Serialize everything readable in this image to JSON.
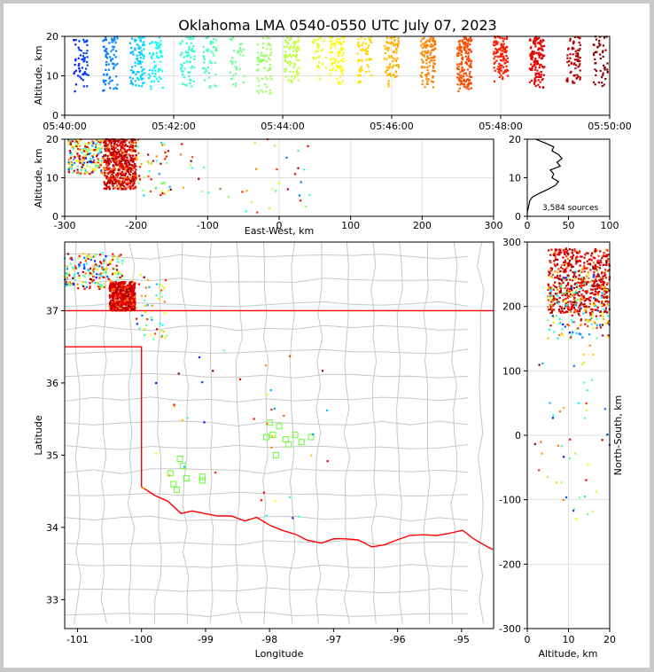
{
  "title": "Oklahoma LMA 0540-0550 UTC July 07, 2023",
  "colors": {
    "state_border": "#ff0000",
    "county_lines": "#c8c8c8",
    "grid": "#e0e0e0",
    "frame_bg": "#c8c8c8"
  },
  "chart_data": [
    {
      "id": "time-altitude",
      "type": "scatter",
      "ylabel": "Altitude, km",
      "xlim": [
        "05:40:00",
        "05:50:00"
      ],
      "ylim": [
        0,
        20
      ],
      "xticks": [
        "05:40:00",
        "05:42:00",
        "05:44:00",
        "05:46:00",
        "05:48:00",
        "05:50:00"
      ],
      "yticks": [
        0,
        10,
        20
      ],
      "color_by": "time",
      "color_ramp": [
        "#0000ff",
        "#00ffff",
        "#80ff80",
        "#ffff00",
        "#ff8000",
        "#ff0000",
        "#800000"
      ],
      "clusters": [
        {
          "t": "05:40:18",
          "alt": [
            6,
            20
          ],
          "n": 60
        },
        {
          "t": "05:40:50",
          "alt": [
            6,
            20
          ],
          "n": 70
        },
        {
          "t": "05:41:20",
          "alt": [
            7,
            20
          ],
          "n": 90
        },
        {
          "t": "05:41:40",
          "alt": [
            6,
            20
          ],
          "n": 60
        },
        {
          "t": "05:42:15",
          "alt": [
            7,
            20
          ],
          "n": 60
        },
        {
          "t": "05:42:40",
          "alt": [
            7,
            20
          ],
          "n": 45
        },
        {
          "t": "05:43:10",
          "alt": [
            7,
            20
          ],
          "n": 35
        },
        {
          "t": "05:43:40",
          "alt": [
            5,
            20
          ],
          "n": 60
        },
        {
          "t": "05:44:10",
          "alt": [
            8,
            20
          ],
          "n": 90
        },
        {
          "t": "05:44:40",
          "alt": [
            9,
            20
          ],
          "n": 30
        },
        {
          "t": "05:45:00",
          "alt": [
            8,
            20
          ],
          "n": 75
        },
        {
          "t": "05:45:30",
          "alt": [
            8,
            20
          ],
          "n": 60
        },
        {
          "t": "05:46:00",
          "alt": [
            7,
            20
          ],
          "n": 80
        },
        {
          "t": "05:46:40",
          "alt": [
            7,
            20
          ],
          "n": 110
        },
        {
          "t": "05:47:20",
          "alt": [
            6,
            20
          ],
          "n": 160
        },
        {
          "t": "05:48:00",
          "alt": [
            8,
            20
          ],
          "n": 110
        },
        {
          "t": "05:48:40",
          "alt": [
            7,
            20
          ],
          "n": 130
        },
        {
          "t": "05:49:20",
          "alt": [
            8,
            20
          ],
          "n": 70
        },
        {
          "t": "05:49:50",
          "alt": [
            7,
            20
          ],
          "n": 50
        }
      ]
    },
    {
      "id": "ew-altitude",
      "type": "scatter",
      "ylabel": "Altitude, km",
      "xlabel": "East-West, km",
      "xlim": [
        -300,
        300
      ],
      "ylim": [
        0,
        20
      ],
      "xticks": [
        -300,
        -200,
        -100,
        0,
        100,
        200,
        300
      ],
      "yticks": [
        0,
        10,
        20
      ],
      "clusters": [
        {
          "x": [
            -295,
            -245
          ],
          "alt": [
            11,
            20
          ],
          "n": 200,
          "color": "mixed"
        },
        {
          "x": [
            -245,
            -200
          ],
          "alt": [
            7,
            20
          ],
          "n": 550,
          "color": "red"
        },
        {
          "x": [
            -200,
            -150
          ],
          "alt": [
            5,
            20
          ],
          "n": 50,
          "color": "mixed"
        },
        {
          "x": [
            -150,
            50
          ],
          "alt": [
            1,
            20
          ],
          "n": 40,
          "color": "mixed"
        }
      ]
    },
    {
      "id": "altitude-histogram",
      "type": "line",
      "xlim": [
        0,
        100
      ],
      "ylim": [
        0,
        20
      ],
      "xticks": [
        0,
        50,
        100
      ],
      "yticks": [
        0,
        10,
        20
      ],
      "annotation": "3,584 sources",
      "alt": [
        0,
        1,
        2,
        3,
        4,
        5,
        6,
        7,
        8,
        9,
        10,
        11,
        12,
        13,
        14,
        15,
        16,
        17,
        18,
        19,
        20
      ],
      "count": [
        0,
        0,
        1,
        2,
        3,
        6,
        15,
        25,
        34,
        38,
        30,
        32,
        28,
        40,
        36,
        42,
        38,
        30,
        32,
        22,
        10
      ]
    },
    {
      "id": "plan-view",
      "type": "map",
      "xlabel": "Longitude",
      "ylabel": "Latitude",
      "xlim": [
        -101.2,
        -94.5
      ],
      "ylim": [
        32.6,
        37.95
      ],
      "xticks": [
        -101,
        -100,
        -99,
        -98,
        -97,
        -96,
        -95
      ],
      "yticks": [
        33,
        34,
        35,
        36,
        37
      ],
      "station_symbol": "green square",
      "stations": [
        [
          -99.4,
          34.95
        ],
        [
          -99.35,
          34.85
        ],
        [
          -99.55,
          34.75
        ],
        [
          -99.3,
          34.68
        ],
        [
          -99.5,
          34.6
        ],
        [
          -99.45,
          34.52
        ],
        [
          -99.05,
          34.7
        ],
        [
          -99.05,
          34.65
        ],
        [
          -98.05,
          35.25
        ],
        [
          -98.0,
          35.45
        ],
        [
          -97.95,
          35.28
        ],
        [
          -97.85,
          35.4
        ],
        [
          -97.75,
          35.22
        ],
        [
          -97.7,
          35.15
        ],
        [
          -97.6,
          35.28
        ],
        [
          -97.5,
          35.18
        ],
        [
          -97.35,
          35.25
        ],
        [
          -97.9,
          35.0
        ]
      ],
      "clusters": [
        {
          "lon": [
            -101.2,
            -100.3
          ],
          "lat": [
            37.3,
            37.8
          ],
          "n": 200,
          "color": "mixed"
        },
        {
          "lon": [
            -100.5,
            -100.1
          ],
          "lat": [
            37.0,
            37.4
          ],
          "n": 550,
          "color": "red"
        },
        {
          "lon": [
            -100.1,
            -99.6
          ],
          "lat": [
            36.6,
            37.5
          ],
          "n": 50,
          "color": "mixed"
        },
        {
          "lon": [
            -100.0,
            -97.0
          ],
          "lat": [
            34.1,
            36.5
          ],
          "n": 40,
          "color": "mixed"
        }
      ]
    },
    {
      "id": "ns-altitude",
      "type": "scatter",
      "xlabel": "Altitude, km",
      "ylabel": "North-South, km",
      "xlim": [
        0,
        20
      ],
      "ylim": [
        -300,
        300
      ],
      "xticks": [
        0,
        10,
        20
      ],
      "yticks": [
        -300,
        -200,
        -100,
        0,
        100,
        200,
        300
      ],
      "clusters": [
        {
          "alt": [
            5,
            20
          ],
          "y": [
            190,
            290
          ],
          "n": 550,
          "color": "red"
        },
        {
          "alt": [
            5,
            20
          ],
          "y": [
            150,
            260
          ],
          "n": 200,
          "color": "mixed"
        },
        {
          "alt": [
            1,
            20
          ],
          "y": [
            -130,
            150
          ],
          "n": 50,
          "color": "mixed"
        }
      ]
    }
  ]
}
